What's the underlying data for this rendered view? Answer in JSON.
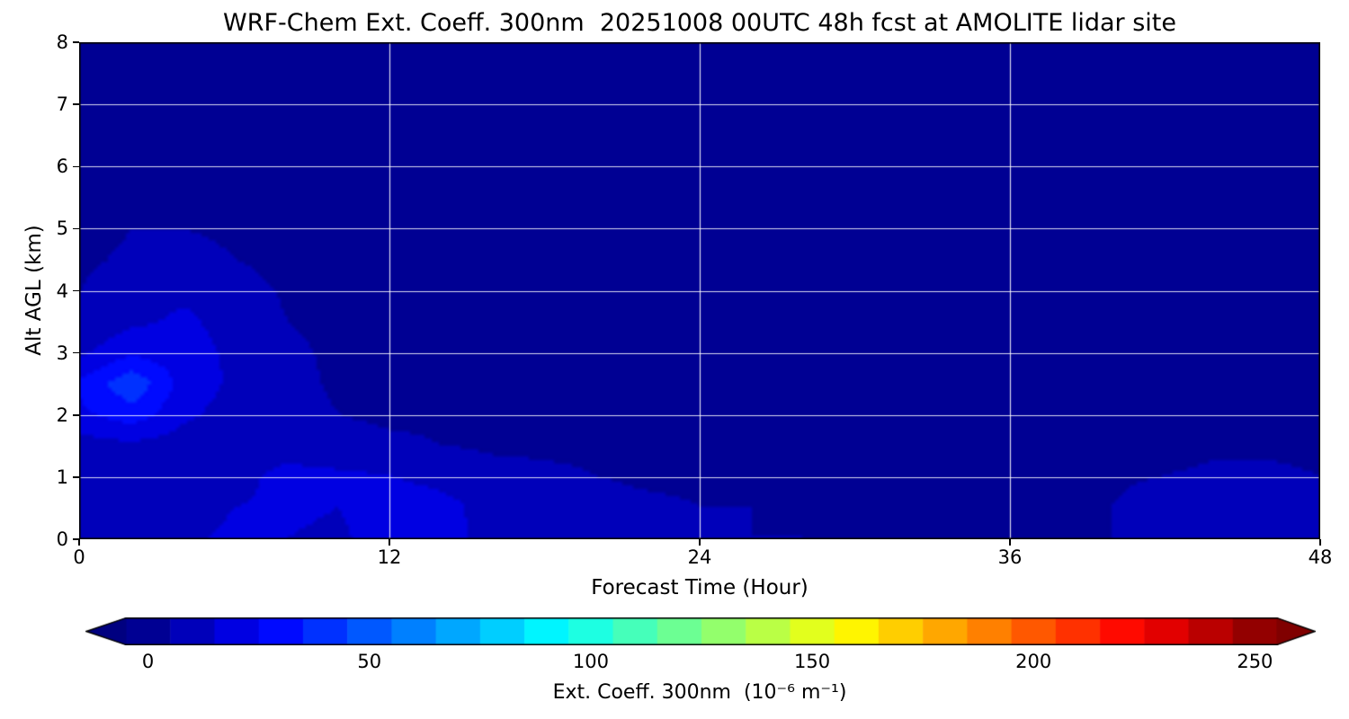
{
  "chart_data": {
    "type": "heatmap",
    "title": "WRF-Chem Ext. Coeff. 300nm  20251008 00UTC 48h fcst at AMOLITE lidar site",
    "xlabel": "Forecast Time (Hour)",
    "ylabel": "Alt AGL (km)",
    "xlim": [
      0,
      48
    ],
    "ylim": [
      0,
      8
    ],
    "xticks": [
      0,
      12,
      24,
      36,
      48
    ],
    "yticks": [
      0,
      1,
      2,
      3,
      4,
      5,
      6,
      7,
      8
    ],
    "xgrid": [
      12,
      24,
      36
    ],
    "ygrid": [
      1,
      2,
      3,
      4,
      5,
      6,
      7
    ],
    "grid": true,
    "colormap": "jet",
    "grid_color": "#ffffff",
    "x": [
      0,
      2,
      4,
      6,
      8,
      10,
      12,
      14,
      16,
      18,
      20,
      22,
      24,
      26,
      28,
      30,
      32,
      34,
      36,
      38,
      40,
      42,
      44,
      46,
      48
    ],
    "y": [
      0,
      0.5,
      1,
      1.5,
      2,
      2.5,
      3,
      3.5,
      4,
      4.5,
      5,
      5.5,
      6,
      6.5,
      7,
      7.5,
      8
    ],
    "values": [
      [
        18,
        20,
        18,
        22,
        20,
        18,
        26,
        24,
        16,
        14,
        13,
        12,
        11,
        10,
        10,
        9,
        9,
        9,
        9,
        9,
        10,
        14,
        18,
        18,
        15
      ],
      [
        16,
        18,
        16,
        20,
        22,
        20,
        27,
        24,
        15,
        13,
        12,
        11,
        10,
        10,
        9,
        9,
        9,
        9,
        9,
        9,
        10,
        13,
        16,
        16,
        13
      ],
      [
        14,
        15,
        14,
        16,
        24,
        22,
        20,
        16,
        12,
        11,
        10,
        9,
        9,
        9,
        9,
        8,
        8,
        8,
        8,
        8,
        9,
        10,
        11,
        11,
        10
      ],
      [
        16,
        18,
        15,
        13,
        14,
        12,
        11,
        10,
        9,
        9,
        9,
        8,
        8,
        8,
        8,
        8,
        8,
        8,
        8,
        8,
        8,
        8,
        9,
        9,
        9
      ],
      [
        28,
        36,
        22,
        16,
        12,
        10,
        9,
        9,
        8,
        8,
        8,
        8,
        8,
        8,
        8,
        8,
        8,
        8,
        8,
        8,
        8,
        8,
        8,
        8,
        8
      ],
      [
        32,
        48,
        26,
        18,
        12,
        9,
        9,
        8,
        8,
        8,
        8,
        8,
        8,
        8,
        8,
        8,
        8,
        8,
        8,
        8,
        8,
        8,
        8,
        8,
        8
      ],
      [
        18,
        28,
        24,
        18,
        11,
        9,
        8,
        8,
        8,
        8,
        8,
        8,
        8,
        8,
        8,
        8,
        8,
        8,
        8,
        8,
        8,
        8,
        8,
        8,
        8
      ],
      [
        12,
        18,
        22,
        16,
        10,
        9,
        8,
        8,
        8,
        8,
        8,
        8,
        8,
        8,
        8,
        8,
        8,
        8,
        8,
        8,
        8,
        8,
        8,
        8,
        8
      ],
      [
        10,
        14,
        18,
        13,
        9,
        8,
        8,
        8,
        8,
        8,
        8,
        8,
        8,
        8,
        8,
        8,
        8,
        8,
        8,
        8,
        8,
        8,
        8,
        8,
        8
      ],
      [
        9,
        11,
        12,
        10,
        8,
        8,
        8,
        8,
        8,
        8,
        8,
        8,
        8,
        8,
        8,
        8,
        8,
        8,
        8,
        8,
        8,
        8,
        8,
        8,
        8
      ],
      [
        8,
        10,
        10,
        9,
        8,
        8,
        8,
        8,
        8,
        8,
        8,
        8,
        8,
        8,
        8,
        8,
        8,
        8,
        8,
        8,
        8,
        8,
        8,
        8,
        8
      ],
      [
        8,
        9,
        9,
        8,
        8,
        8,
        8,
        8,
        8,
        8,
        8,
        8,
        8,
        8,
        8,
        8,
        8,
        8,
        8,
        8,
        8,
        8,
        8,
        8,
        8
      ],
      [
        8,
        8,
        8,
        8,
        8,
        8,
        8,
        8,
        8,
        8,
        8,
        8,
        8,
        8,
        8,
        8,
        8,
        8,
        8,
        8,
        8,
        8,
        8,
        8,
        8
      ],
      [
        8,
        8,
        8,
        8,
        8,
        8,
        8,
        8,
        8,
        8,
        8,
        8,
        8,
        8,
        8,
        8,
        8,
        8,
        8,
        8,
        8,
        8,
        8,
        8,
        8
      ],
      [
        8,
        8,
        8,
        8,
        8,
        8,
        8,
        8,
        8,
        8,
        8,
        8,
        8,
        8,
        8,
        8,
        8,
        8,
        8,
        8,
        8,
        8,
        8,
        8,
        8
      ],
      [
        8,
        8,
        8,
        8,
        8,
        8,
        8,
        8,
        8,
        8,
        8,
        8,
        8,
        8,
        8,
        8,
        8,
        8,
        8,
        8,
        8,
        8,
        8,
        8,
        8
      ],
      [
        8,
        8,
        8,
        8,
        8,
        8,
        8,
        8,
        8,
        8,
        8,
        8,
        8,
        8,
        8,
        8,
        8,
        8,
        8,
        8,
        8,
        8,
        8,
        8,
        8
      ]
    ],
    "colorbar": {
      "label": "Ext. Coeff. 300nm  (10⁻⁶ m⁻¹)",
      "ticks": [
        0,
        50,
        100,
        150,
        200,
        250
      ],
      "vmin": 0,
      "vmax": 250,
      "extend": "both",
      "levels_step": 10
    }
  }
}
